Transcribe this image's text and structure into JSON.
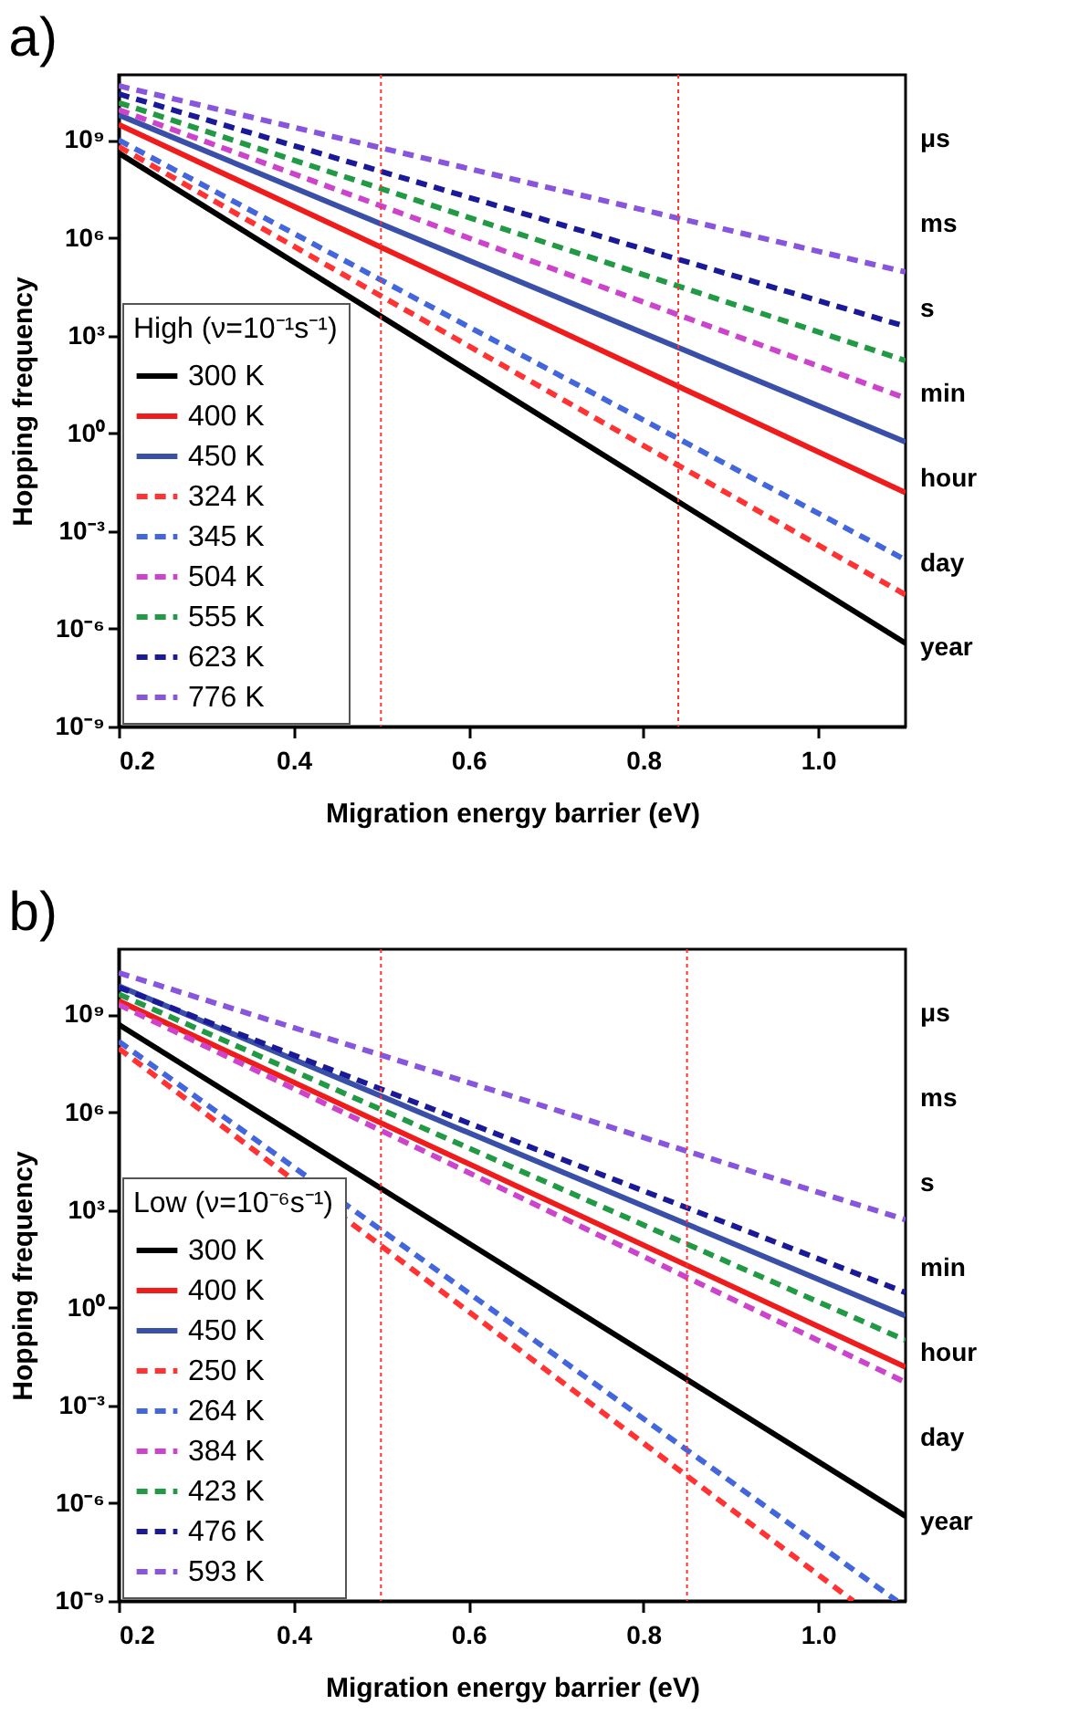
{
  "chart_data": [
    {
      "type": "line",
      "title": "a)",
      "xlabel": "Migration energy barrier (eV)",
      "ylabel": "Hopping frequency",
      "legend_title": "High (ν=10⁻¹s⁻¹)",
      "legend": "bottom left",
      "log": true,
      "xlim": [
        0.2,
        1.1
      ],
      "xticks": [
        0.2,
        0.4,
        0.6,
        0.8,
        {
          "value": 1,
          "label": "1.0"
        }
      ],
      "ylim": [
        1e-09,
        100000000000.0
      ],
      "yticks": [
        {
          "value": 1e-09,
          "label": "10⁻⁹"
        },
        {
          "value": 1e-06,
          "label": "10⁻⁶"
        },
        {
          "value": 0.001,
          "label": "10⁻³"
        },
        {
          "value": 1,
          "label": "10⁰"
        },
        {
          "value": 1000,
          "label": "10³"
        },
        {
          "value": 1000000.0,
          "label": "10⁶"
        },
        {
          "value": 1000000000.0,
          "label": "10⁹"
        }
      ],
      "series": [
        {
          "name": "300 K",
          "color": "#000000",
          "line_style": "solid",
          "x": [
            0.2,
            1.1
          ],
          "values": [
            400000000.0,
            3.6e-07
          ]
        },
        {
          "name": "400 K",
          "color": "#ee1c1c",
          "line_style": "solid",
          "x": [
            0.2,
            1.1
          ],
          "values": [
            3000000000.0,
            0.015
          ]
        },
        {
          "name": "450 K",
          "color": "#3a4fa8",
          "line_style": "solid",
          "x": [
            0.2,
            1.1
          ],
          "values": [
            5900000000.0,
            0.54
          ]
        },
        {
          "name": "324 K",
          "color": "#ff3333",
          "line_style": "dashed",
          "x": [
            0.2,
            1.1
          ],
          "values": [
            630000000.0,
            1.1e-05
          ]
        },
        {
          "name": "345 K",
          "color": "#4466dd",
          "line_style": "dashed",
          "x": [
            0.2,
            1.1
          ],
          "values": [
            1000000000.0,
            0.00013
          ]
        },
        {
          "name": "504 K",
          "color": "#cc44cc",
          "line_style": "dashed",
          "x": [
            0.2,
            1.1
          ],
          "values": [
            8500000000.0,
            12
          ]
        },
        {
          "name": "555 K",
          "color": "#229944",
          "line_style": "dashed",
          "x": [
            0.2,
            1.1
          ],
          "values": [
            14000000000.0,
            170
          ]
        },
        {
          "name": "623 K",
          "color": "#1a1a99",
          "line_style": "dashed",
          "x": [
            0.2,
            1.1
          ],
          "values": [
            26000000000.0,
            1900
          ]
        },
        {
          "name": "776 K",
          "color": "#8855dd",
          "line_style": "dashed",
          "x": [
            0.2,
            1.1
          ],
          "values": [
            46000000000.0,
            89000.0
          ]
        }
      ],
      "annotations": [
        "μs",
        "ms",
        "s",
        "min",
        "hour",
        "day",
        "year"
      ],
      "ref_lines": [
        {
          "axis": "x",
          "value": 0.5,
          "color": "#ff3333",
          "line_style": "dotted"
        },
        {
          "axis": "x",
          "value": 0.84,
          "color": "#ff3333",
          "line_style": "dotted"
        }
      ]
    },
    {
      "type": "line",
      "title": "b)",
      "xlabel": "Migration energy barrier (eV)",
      "ylabel": "Hopping frequency",
      "legend_title": "Low (ν=10⁻⁶s⁻¹)",
      "legend": "bottom left",
      "log": true,
      "xlim": [
        0.2,
        1.1
      ],
      "xticks": [
        0.2,
        0.4,
        0.6,
        0.8,
        {
          "value": 1,
          "label": "1.0"
        }
      ],
      "ylim": [
        1e-09,
        100000000000.0
      ],
      "yticks": [
        {
          "value": 1e-09,
          "label": "10⁻⁹"
        },
        {
          "value": 1e-06,
          "label": "10⁻⁶"
        },
        {
          "value": 0.001,
          "label": "10⁻³"
        },
        {
          "value": 1,
          "label": "10⁰"
        },
        {
          "value": 1000,
          "label": "10³"
        },
        {
          "value": 1000000.0,
          "label": "10⁶"
        },
        {
          "value": 1000000000.0,
          "label": "10⁹"
        }
      ],
      "series": [
        {
          "name": "300 K",
          "color": "#000000",
          "line_style": "solid",
          "x": [
            0.2,
            1.1
          ],
          "values": [
            490000000.0,
            4e-07
          ]
        },
        {
          "name": "400 K",
          "color": "#ee1c1c",
          "line_style": "solid",
          "x": [
            0.2,
            1.1
          ],
          "values": [
            2600000000.0,
            0.015
          ]
        },
        {
          "name": "450 K",
          "color": "#3a4fa8",
          "line_style": "solid",
          "x": [
            0.2,
            1.1
          ],
          "values": [
            7400000000.0,
            0.56
          ]
        },
        {
          "name": "250 K",
          "color": "#ff3333",
          "line_style": "dashed",
          "x": [
            0.2,
            1.04
          ],
          "values": [
            91000000.0,
            1e-09
          ]
        },
        {
          "name": "264 K",
          "color": "#4466dd",
          "line_style": "dashed",
          "x": [
            0.2,
            1.09
          ],
          "values": [
            150000000.0,
            1e-09
          ]
        },
        {
          "name": "384 K",
          "color": "#cc44cc",
          "line_style": "dashed",
          "x": [
            0.2,
            1.1
          ],
          "values": [
            2000000000.0,
            0.0051
          ]
        },
        {
          "name": "423 K",
          "color": "#229944",
          "line_style": "dashed",
          "x": [
            0.2,
            1.1
          ],
          "values": [
            4200000000.0,
            0.1
          ]
        },
        {
          "name": "476 K",
          "color": "#1a1a99",
          "line_style": "dashed",
          "x": [
            0.2,
            1.1
          ],
          "values": [
            6800000000.0,
            2.9
          ]
        },
        {
          "name": "593 K",
          "color": "#8855dd",
          "line_style": "dashed",
          "x": [
            0.2,
            1.1
          ],
          "values": [
            19000000000.0,
            500
          ]
        }
      ],
      "annotations": [
        "μs",
        "ms",
        "s",
        "min",
        "hour",
        "day",
        "year"
      ],
      "ref_lines": [
        {
          "axis": "x",
          "value": 0.5,
          "color": "#ff3333",
          "line_style": "dotted"
        },
        {
          "axis": "x",
          "value": 0.85,
          "color": "#ff3333",
          "line_style": "dotted"
        }
      ]
    }
  ]
}
